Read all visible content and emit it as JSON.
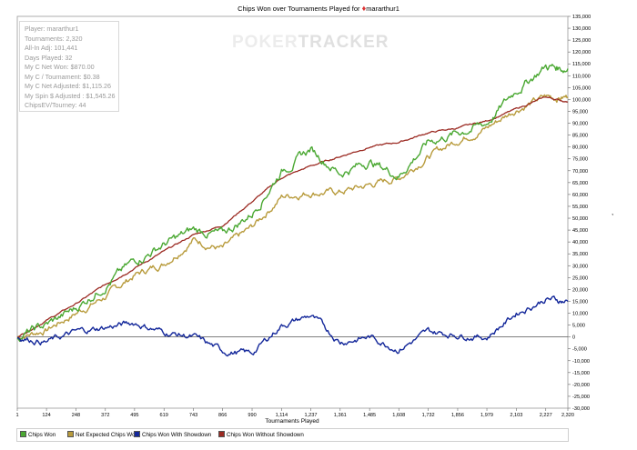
{
  "window": {
    "title": "Chips Won over Tournaments Played for",
    "player_name": "mararthur1",
    "watermark_part1": "POKER",
    "watermark_part2": "TRACKER"
  },
  "stats": {
    "player": "Player: mararthur1",
    "tournaments": "Tournaments: 2,320",
    "allin_adj": "All-In Adj: 101,441",
    "days_played": "Days Played: 32",
    "net_won": "My C Net Won: $870.00",
    "per_tournament": "My C / Tournament: $0.38",
    "net_adjusted": "My C Net Adjusted: $1,115.26",
    "spin_adjusted": "My Spin $ Adjusted : $1,545.26",
    "chipsev": "ChipsEV/Tourney: 44"
  },
  "legend": {
    "chips_won": "Chips Won",
    "net_expected": "Net Expected Chips Won",
    "with_showdown": "Chips Won With Showdown",
    "without_showdown": "Chips Won Without Showdown"
  },
  "colors": {
    "chips_won": "#4aa832",
    "net_expected": "#b89b3c",
    "with_showdown": "#13279a",
    "without_showdown": "#9b2a22"
  },
  "chart_data": {
    "type": "line",
    "title": "Chips Won over Tournaments Played for mararthur1",
    "xlabel": "Tournaments Played",
    "ylabel": "",
    "xlim": [
      1,
      2320
    ],
    "ylim": [
      -30000,
      135000
    ],
    "x_ticks": [
      "1",
      "124",
      "248",
      "372",
      "495",
      "619",
      "743",
      "866",
      "990",
      "1,114",
      "1,237",
      "1,361",
      "1,485",
      "1,608",
      "1,732",
      "1,856",
      "1,979",
      "2,103",
      "2,227",
      "2,320"
    ],
    "y_ticks": [
      "-30,000",
      "-25,000",
      "-20,000",
      "-15,000",
      "-10,000",
      "-5,000",
      "0",
      "5,000",
      "10,000",
      "15,000",
      "20,000",
      "25,000",
      "30,000",
      "35,000",
      "40,000",
      "45,000",
      "50,000",
      "55,000",
      "60,000",
      "65,000",
      "70,000",
      "75,000",
      "80,000",
      "85,000",
      "90,000",
      "95,000",
      "100,000",
      "105,000",
      "110,000",
      "115,000",
      "120,000",
      "125,000",
      "130,000",
      "135,000"
    ],
    "x": [
      1,
      124,
      248,
      372,
      495,
      619,
      743,
      866,
      990,
      1114,
      1237,
      1361,
      1485,
      1608,
      1732,
      1856,
      1979,
      2103,
      2227,
      2320
    ],
    "series": [
      {
        "name": "Chips Won",
        "values": [
          0,
          5000,
          12000,
          22000,
          32000,
          39000,
          45000,
          43000,
          52000,
          70000,
          79000,
          69000,
          74000,
          68000,
          82000,
          86000,
          90000,
          104000,
          114000,
          113000
        ]
      },
      {
        "name": "Net Expected Chips Won",
        "values": [
          0,
          3000,
          10000,
          17000,
          26000,
          31000,
          41000,
          37000,
          46000,
          59000,
          61000,
          61000,
          64000,
          67000,
          76000,
          83000,
          88000,
          96000,
          101000,
          101000
        ]
      },
      {
        "name": "Chips Won With Showdown",
        "values": [
          0,
          -2000,
          2000,
          4000,
          6000,
          2000,
          0,
          -6000,
          -7000,
          5000,
          9000,
          -2000,
          0,
          -5000,
          2000,
          1000,
          0,
          10000,
          16000,
          15000
        ]
      },
      {
        "name": "Chips Won Without Showdown",
        "values": [
          0,
          7000,
          14000,
          22000,
          29000,
          36000,
          43000,
          47000,
          57000,
          67000,
          72000,
          76000,
          80000,
          82000,
          86000,
          88000,
          91000,
          96000,
          101000,
          99000
        ]
      }
    ],
    "legend_position": "bottom",
    "grid": false
  }
}
